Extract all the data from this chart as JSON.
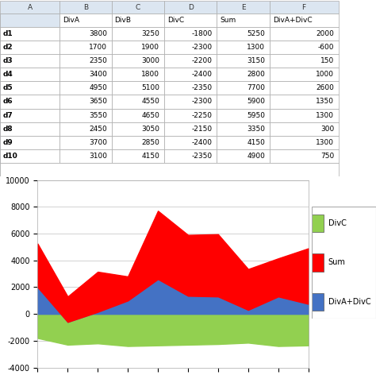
{
  "categories": [
    "d1",
    "d2",
    "d3",
    "d4",
    "d5",
    "d6",
    "d7",
    "d8",
    "d9",
    "d10"
  ],
  "DivC": [
    -1800,
    -2300,
    -2200,
    -2400,
    -2350,
    -2300,
    -2250,
    -2150,
    -2400,
    -2350
  ],
  "Sum": [
    5250,
    1300,
    3150,
    2800,
    7700,
    5900,
    5950,
    3350,
    4150,
    4900
  ],
  "DivA_DivC": [
    2000,
    -600,
    150,
    1000,
    2600,
    1350,
    1300,
    300,
    1300,
    750
  ],
  "color_DivC": "#92d050",
  "color_Sum": "#ff0000",
  "color_DivA_DivC": "#4472c4",
  "ylim": [
    -4000,
    10000
  ],
  "yticks": [
    -4000,
    -2000,
    0,
    2000,
    4000,
    6000,
    8000,
    10000
  ],
  "legend_labels": [
    "DivC",
    "Sum",
    "DivA+DivC"
  ],
  "bg_color": "#ffffff",
  "plot_bg": "#ffffff",
  "grid_color": "#c0c0c0",
  "col_header_bg": "#dce6f1",
  "col_A_bg": "#ffffff",
  "row_A_bg": "#ffffff",
  "table_grid": "#aaaaaa",
  "figsize": [
    4.74,
    4.72
  ],
  "dpi": 100,
  "col_labels": [
    "",
    "DivA",
    "DivB",
    "DivC",
    "Sum",
    "DivA+DivC"
  ],
  "col_header_letters": [
    "A",
    "B",
    "C",
    "D",
    "E",
    "F"
  ],
  "rows_data": [
    [
      "d1",
      "3800",
      "3250",
      "-1800",
      "5250",
      "2000"
    ],
    [
      "d2",
      "1700",
      "1900",
      "-2300",
      "1300",
      "-600"
    ],
    [
      "d3",
      "2350",
      "3000",
      "-2200",
      "3150",
      "150"
    ],
    [
      "d4",
      "3400",
      "1800",
      "-2400",
      "2800",
      "1000"
    ],
    [
      "d5",
      "4950",
      "5100",
      "-2350",
      "7700",
      "2600"
    ],
    [
      "d6",
      "3650",
      "4550",
      "-2300",
      "5900",
      "1350"
    ],
    [
      "d7",
      "3550",
      "4650",
      "-2250",
      "5950",
      "1300"
    ],
    [
      "d8",
      "2450",
      "3050",
      "-2150",
      "3350",
      "300"
    ],
    [
      "d9",
      "3700",
      "2850",
      "-2400",
      "4150",
      "1300"
    ],
    [
      "d10",
      "3100",
      "4150",
      "-2350",
      "4900",
      "750"
    ]
  ]
}
